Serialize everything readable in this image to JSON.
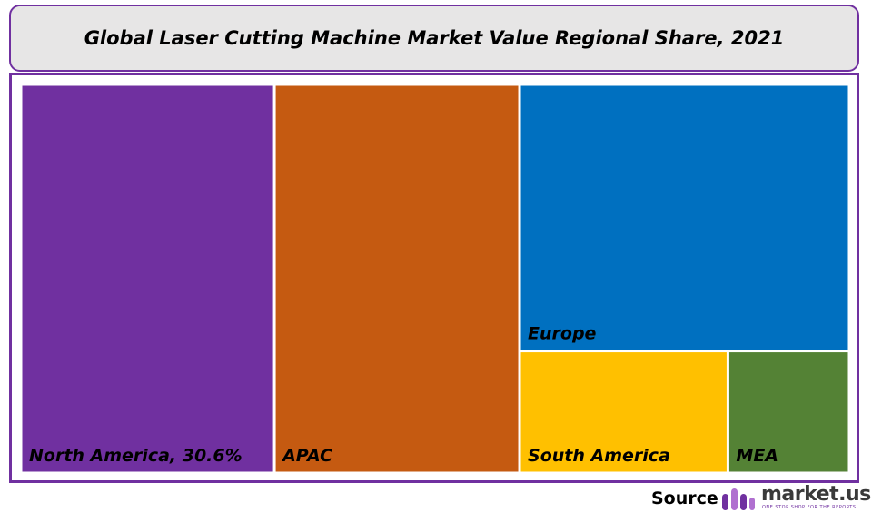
{
  "title": "Global Laser Cutting Machine Market Value Regional Share, 2021",
  "chart_data": {
    "type": "treemap",
    "title": "Global Laser Cutting Machine Market Value Regional Share, 2021",
    "regions": [
      {
        "name": "North America",
        "label": "North America, 30.6%",
        "value": 30.6,
        "color": "#7030a0"
      },
      {
        "name": "APAC",
        "label": "APAC",
        "value": 29.6,
        "color": "#c55a11"
      },
      {
        "name": "Europe",
        "label": "Europe",
        "value": 27.3,
        "color": "#0070c0"
      },
      {
        "name": "South America",
        "label": "South America",
        "value": 7.9,
        "color": "#ffc000"
      },
      {
        "name": "MEA",
        "label": "MEA",
        "value": 4.6,
        "color": "#548235"
      }
    ]
  },
  "source": {
    "label": "Source",
    "brand": "market.us",
    "tagline": "ONE STOP SHOP FOR THE REPORTS"
  }
}
